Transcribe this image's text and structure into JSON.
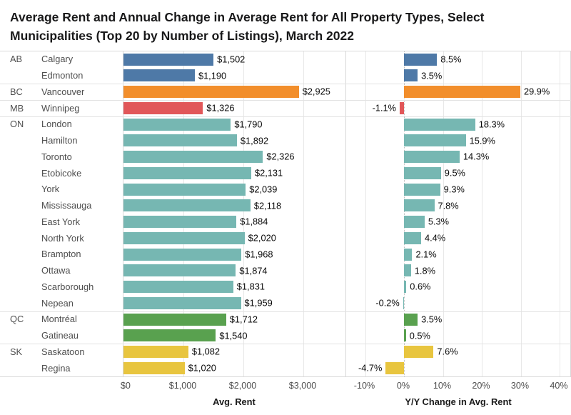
{
  "title": "Average Rent and Annual Change in Average Rent for All Property Types, Select Municipalities (Top 20 by Number of Listings), March 2022",
  "colors": {
    "AB": "#4e79a7",
    "BC": "#f28e2b",
    "MB": "#e15759",
    "ON": "#76b7b2",
    "QC": "#59a14f",
    "SK": "#e8c53f"
  },
  "axes": {
    "rent": {
      "label": "Avg. Rent",
      "ticks": [
        {
          "value": 0,
          "label": "$0"
        },
        {
          "value": 1000,
          "label": "$1,000"
        },
        {
          "value": 2000,
          "label": "$2,000"
        },
        {
          "value": 3000,
          "label": "$3,000"
        }
      ]
    },
    "change": {
      "label": "Y/Y Change in Avg. Rent",
      "ticks": [
        {
          "value": -10,
          "label": "-10%"
        },
        {
          "value": 0,
          "label": "0%"
        },
        {
          "value": 10,
          "label": "10%"
        },
        {
          "value": 20,
          "label": "20%"
        },
        {
          "value": 30,
          "label": "30%"
        },
        {
          "value": 40,
          "label": "40%"
        }
      ]
    }
  },
  "chart_data": {
    "type": "bar",
    "orientation": "horizontal",
    "panels": [
      "Avg. Rent",
      "Y/Y Change in Avg. Rent"
    ],
    "rent_axis_range": [
      0,
      3700
    ],
    "change_axis_range": [
      -15,
      41
    ],
    "groups": [
      {
        "province": "AB",
        "rows": [
          {
            "name": "Calgary",
            "avg_rent": 1502,
            "rent_label": "$1,502",
            "yoy_change": 8.5,
            "change_label": "8.5%"
          },
          {
            "name": "Edmonton",
            "avg_rent": 1190,
            "rent_label": "$1,190",
            "yoy_change": 3.5,
            "change_label": "3.5%"
          }
        ]
      },
      {
        "province": "BC",
        "rows": [
          {
            "name": "Vancouver",
            "avg_rent": 2925,
            "rent_label": "$2,925",
            "yoy_change": 29.9,
            "change_label": "29.9%"
          }
        ]
      },
      {
        "province": "MB",
        "rows": [
          {
            "name": "Winnipeg",
            "avg_rent": 1326,
            "rent_label": "$1,326",
            "yoy_change": -1.1,
            "change_label": "-1.1%"
          }
        ]
      },
      {
        "province": "ON",
        "rows": [
          {
            "name": "London",
            "avg_rent": 1790,
            "rent_label": "$1,790",
            "yoy_change": 18.3,
            "change_label": "18.3%"
          },
          {
            "name": "Hamilton",
            "avg_rent": 1892,
            "rent_label": "$1,892",
            "yoy_change": 15.9,
            "change_label": "15.9%"
          },
          {
            "name": "Toronto",
            "avg_rent": 2326,
            "rent_label": "$2,326",
            "yoy_change": 14.3,
            "change_label": "14.3%"
          },
          {
            "name": "Etobicoke",
            "avg_rent": 2131,
            "rent_label": "$2,131",
            "yoy_change": 9.5,
            "change_label": "9.5%"
          },
          {
            "name": "York",
            "avg_rent": 2039,
            "rent_label": "$2,039",
            "yoy_change": 9.3,
            "change_label": "9.3%"
          },
          {
            "name": "Mississauga",
            "avg_rent": 2118,
            "rent_label": "$2,118",
            "yoy_change": 7.8,
            "change_label": "7.8%"
          },
          {
            "name": "East York",
            "avg_rent": 1884,
            "rent_label": "$1,884",
            "yoy_change": 5.3,
            "change_label": "5.3%"
          },
          {
            "name": "North York",
            "avg_rent": 2020,
            "rent_label": "$2,020",
            "yoy_change": 4.4,
            "change_label": "4.4%"
          },
          {
            "name": "Brampton",
            "avg_rent": 1968,
            "rent_label": "$1,968",
            "yoy_change": 2.1,
            "change_label": "2.1%"
          },
          {
            "name": "Ottawa",
            "avg_rent": 1874,
            "rent_label": "$1,874",
            "yoy_change": 1.8,
            "change_label": "1.8%"
          },
          {
            "name": "Scarborough",
            "avg_rent": 1831,
            "rent_label": "$1,831",
            "yoy_change": 0.6,
            "change_label": "0.6%"
          },
          {
            "name": "Nepean",
            "avg_rent": 1959,
            "rent_label": "$1,959",
            "yoy_change": -0.2,
            "change_label": "-0.2%"
          }
        ]
      },
      {
        "province": "QC",
        "rows": [
          {
            "name": "Montréal",
            "avg_rent": 1712,
            "rent_label": "$1,712",
            "yoy_change": 3.5,
            "change_label": "3.5%"
          },
          {
            "name": "Gatineau",
            "avg_rent": 1540,
            "rent_label": "$1,540",
            "yoy_change": 0.5,
            "change_label": "0.5%"
          }
        ]
      },
      {
        "province": "SK",
        "rows": [
          {
            "name": "Saskatoon",
            "avg_rent": 1082,
            "rent_label": "$1,082",
            "yoy_change": 7.6,
            "change_label": "7.6%"
          },
          {
            "name": "Regina",
            "avg_rent": 1020,
            "rent_label": "$1,020",
            "yoy_change": -4.7,
            "change_label": "-4.7%"
          }
        ]
      }
    ]
  }
}
